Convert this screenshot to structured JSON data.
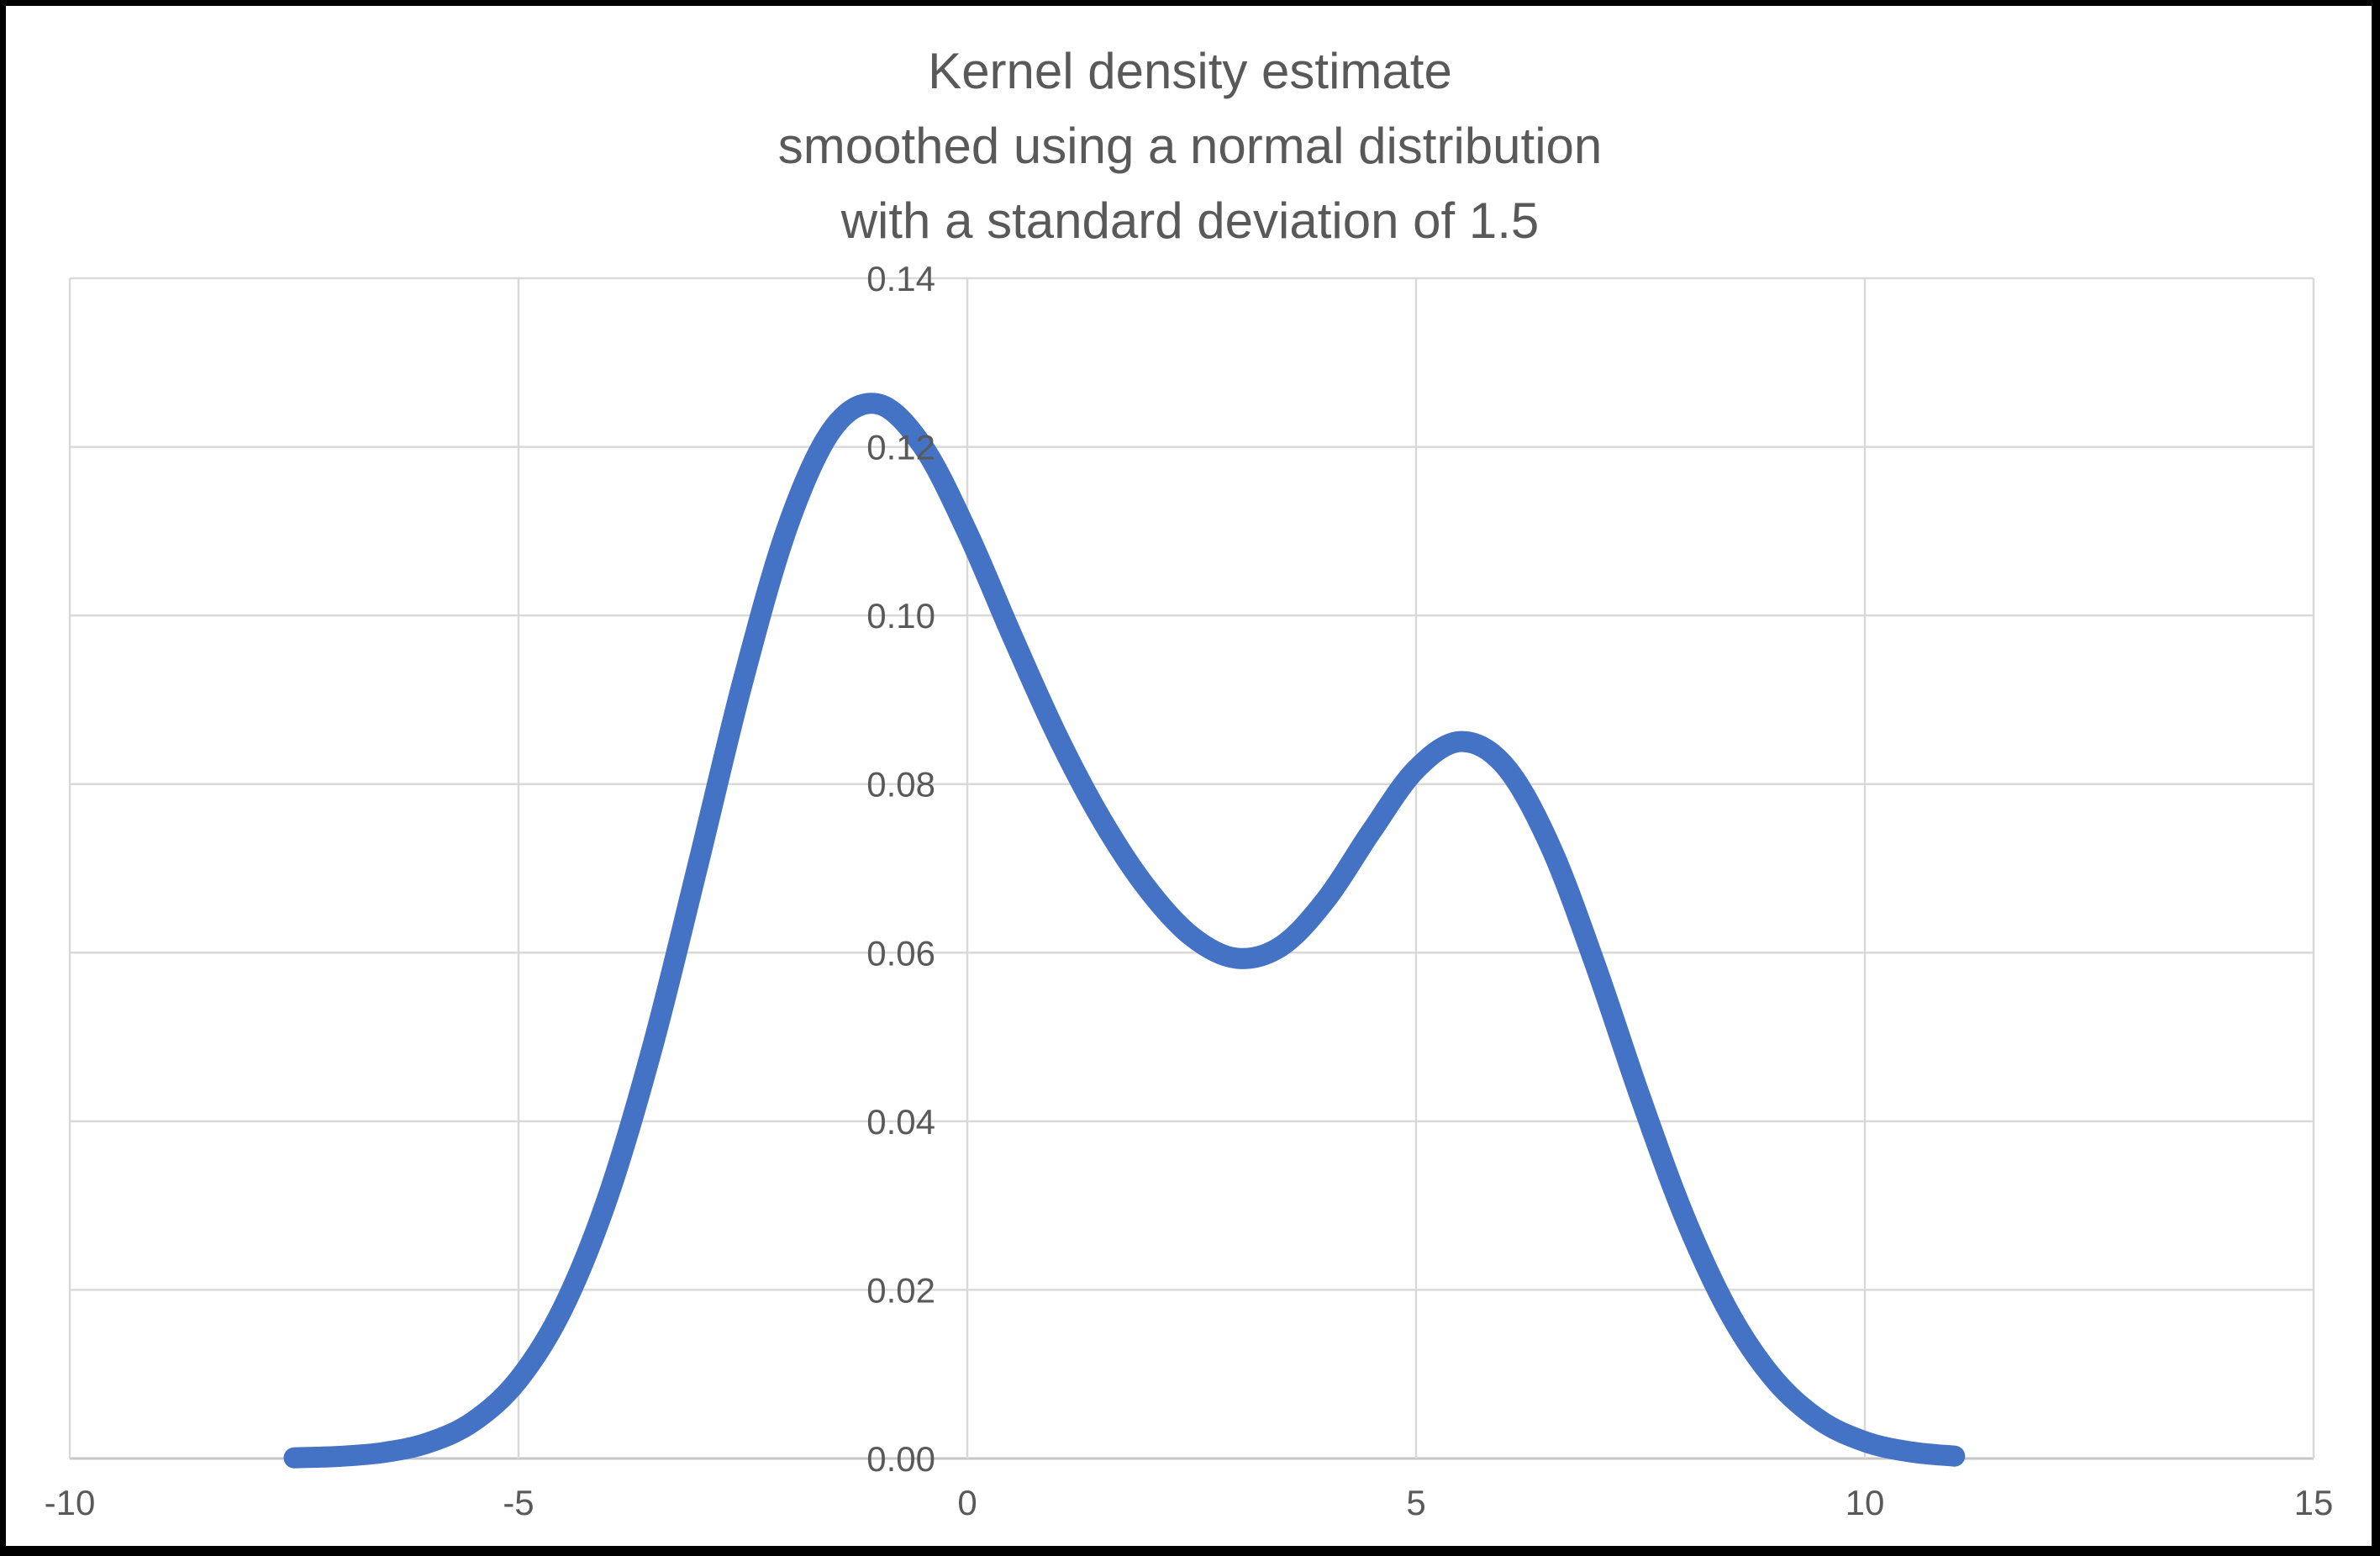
{
  "title": {
    "lines": [
      "Kernel density estimate",
      "smoothed using a normal distribution",
      "with a standard deviation of 1.5"
    ]
  },
  "colors": {
    "curve": "#4472C4",
    "gridline": "#D9D9D9",
    "axis_line": "#C6C6C6",
    "label_text": "#595959",
    "title_text": "#595959",
    "background": "#FFFFFF",
    "frame": "#000000"
  },
  "chart_data": {
    "type": "line",
    "title": "Kernel density estimate smoothed using a normal distribution with a standard deviation of 1.5",
    "xlabel": "",
    "ylabel": "",
    "xlim": [
      -10,
      15
    ],
    "ylim": [
      0,
      0.14
    ],
    "x_ticks": [
      -10,
      -5,
      0,
      5,
      10,
      15
    ],
    "x_tick_labels": [
      "-10",
      "-5",
      "0",
      "5",
      "10",
      "15"
    ],
    "y_ticks": [
      0,
      0.02,
      0.04,
      0.06,
      0.08,
      0.1,
      0.12,
      0.14
    ],
    "y_tick_labels": [
      "0.00",
      "0.02",
      "0.04",
      "0.06",
      "0.08",
      "0.10",
      "0.12",
      "0.14"
    ],
    "grid": true,
    "legend": false,
    "series": [
      {
        "points": [
          [
            -7.5,
            8e-05
          ],
          [
            -7.0,
            0.00025
          ],
          [
            -6.5,
            0.00072
          ],
          [
            -6.0,
            0.00188
          ],
          [
            -5.5,
            0.00442
          ],
          [
            -5.0,
            0.00936
          ],
          [
            -4.5,
            0.01795
          ],
          [
            -4.0,
            0.03116
          ],
          [
            -3.5,
            0.0491
          ],
          [
            -3.0,
            0.07044
          ],
          [
            -2.5,
            0.09221
          ],
          [
            -2.0,
            0.1106
          ],
          [
            -1.5,
            0.12214
          ],
          [
            -1.0,
            0.1251
          ],
          [
            -0.5,
            0.12015
          ],
          [
            0.0,
            0.10989
          ],
          [
            0.5,
            0.09758
          ],
          [
            1.0,
            0.08579
          ],
          [
            1.5,
            0.07573
          ],
          [
            2.0,
            0.06768
          ],
          [
            2.5,
            0.06194
          ],
          [
            3.0,
            0.05934
          ],
          [
            3.5,
            0.06079
          ],
          [
            4.0,
            0.06634
          ],
          [
            4.5,
            0.07436
          ],
          [
            5.0,
            0.08174
          ],
          [
            5.5,
            0.08505
          ],
          [
            6.0,
            0.08203
          ],
          [
            6.5,
            0.07253
          ],
          [
            7.0,
            0.05847
          ],
          [
            7.5,
            0.04282
          ],
          [
            8.0,
            0.02843
          ],
          [
            8.5,
            0.01708
          ],
          [
            9.0,
            0.00928
          ],
          [
            9.5,
            0.00454
          ],
          [
            10.0,
            0.002
          ],
          [
            10.5,
            0.0008
          ],
          [
            11.0,
            0.00028
          ]
        ]
      }
    ]
  }
}
